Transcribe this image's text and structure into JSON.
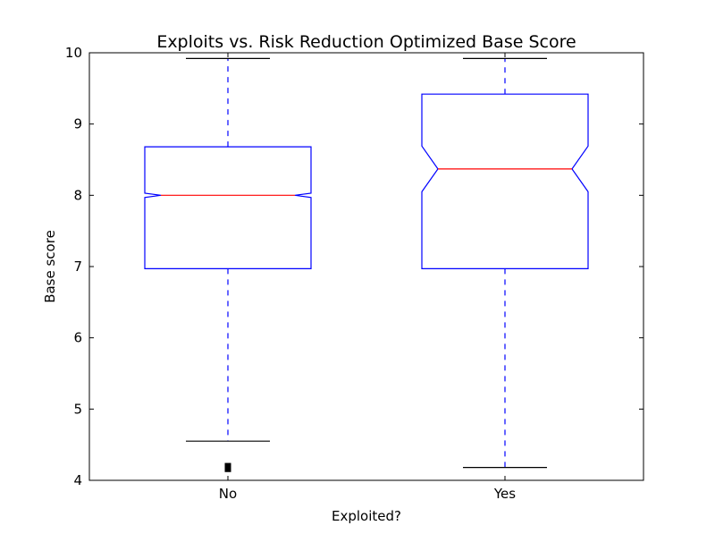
{
  "chart_data": {
    "type": "boxplot",
    "title": "Exploits vs. Risk Reduction Optimized Base Score",
    "xlabel": "Exploited?",
    "ylabel": "Base score",
    "categories": [
      "No",
      "Yes"
    ],
    "ylim": [
      4,
      10
    ],
    "yticks": [
      "4",
      "5",
      "6",
      "7",
      "8",
      "9",
      "10"
    ],
    "notched": true,
    "grid": false,
    "boxes": [
      {
        "category": "No",
        "whisker_low": 4.55,
        "q1": 6.97,
        "median": 8.0,
        "q3": 8.68,
        "whisker_high": 9.92,
        "notch_low": 7.97,
        "notch_high": 8.03,
        "outliers": [
          4.16,
          4.18,
          4.2
        ]
      },
      {
        "category": "Yes",
        "whisker_low": 4.18,
        "q1": 6.97,
        "median": 8.37,
        "q3": 9.42,
        "whisker_high": 9.92,
        "notch_low": 8.05,
        "notch_high": 8.69,
        "outliers": []
      }
    ],
    "colors": {
      "box": "#0000ff",
      "whisker": "#0000ff",
      "median": "#ff0000",
      "cap": "#000000",
      "outlier": "#000000",
      "axes": "#000000"
    }
  }
}
